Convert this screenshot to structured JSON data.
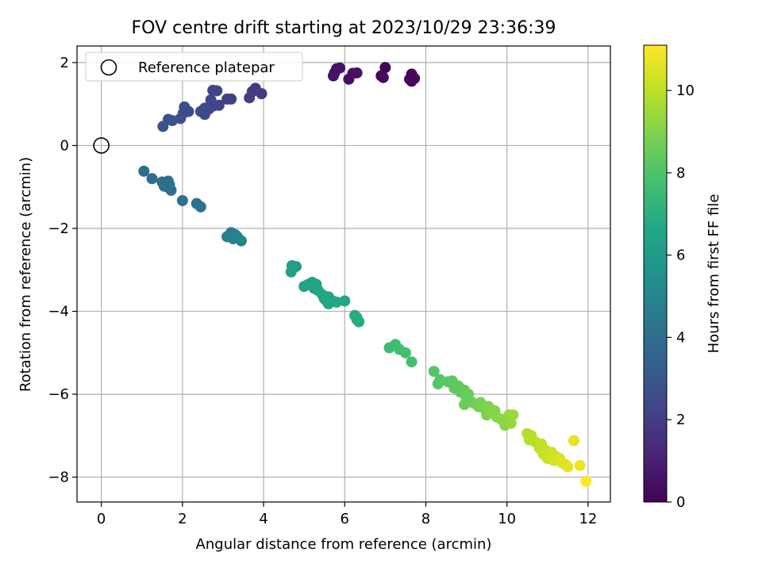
{
  "chart_data": {
    "type": "scatter",
    "title": "FOV centre drift starting at 2023/10/29 23:36:39",
    "xlabel": "Angular distance from reference (arcmin)",
    "ylabel": "Rotation from reference (arcmin)",
    "xlim": [
      -0.6,
      12.55
    ],
    "ylim": [
      -8.6,
      2.4
    ],
    "x_ticks": [
      0,
      2,
      4,
      6,
      8,
      10,
      12
    ],
    "x_tick_labels": [
      "0",
      "2",
      "4",
      "6",
      "8",
      "10",
      "12"
    ],
    "y_ticks": [
      2,
      0,
      -2,
      -4,
      -6,
      -8
    ],
    "y_tick_labels": [
      "2",
      "0",
      "−2",
      "−4",
      "−6",
      "−8"
    ],
    "grid": true,
    "legend": {
      "placement": "top-left",
      "entries": [
        {
          "label": "Reference platepar",
          "marker": "open-circle"
        }
      ]
    },
    "reference_point": {
      "x": 0,
      "y": 0
    },
    "colorbar": {
      "label": "Hours from first FF file",
      "colormap": "viridis",
      "range": [
        0,
        11.1
      ],
      "ticks": [
        0,
        2,
        4,
        6,
        8,
        10
      ],
      "tick_labels": [
        "0",
        "2",
        "4",
        "6",
        "8",
        "10"
      ]
    },
    "points": [
      {
        "x": 7.0,
        "y": 1.88,
        "h": 0.1
      },
      {
        "x": 7.65,
        "y": 1.72,
        "h": 0.1
      },
      {
        "x": 7.6,
        "y": 1.6,
        "h": 0.15
      },
      {
        "x": 7.72,
        "y": 1.62,
        "h": 0.2
      },
      {
        "x": 7.65,
        "y": 1.55,
        "h": 0.2
      },
      {
        "x": 6.9,
        "y": 1.68,
        "h": 0.3
      },
      {
        "x": 6.95,
        "y": 1.64,
        "h": 0.35
      },
      {
        "x": 6.1,
        "y": 1.6,
        "h": 0.4
      },
      {
        "x": 6.2,
        "y": 1.74,
        "h": 0.45
      },
      {
        "x": 6.3,
        "y": 1.75,
        "h": 0.5
      },
      {
        "x": 5.8,
        "y": 1.85,
        "h": 0.5
      },
      {
        "x": 5.88,
        "y": 1.87,
        "h": 0.55
      },
      {
        "x": 5.75,
        "y": 1.75,
        "h": 0.6
      },
      {
        "x": 5.72,
        "y": 1.68,
        "h": 0.65
      },
      {
        "x": 3.95,
        "y": 1.25,
        "h": 1.9
      },
      {
        "x": 3.8,
        "y": 1.38,
        "h": 1.95
      },
      {
        "x": 3.72,
        "y": 1.3,
        "h": 2.0
      },
      {
        "x": 3.65,
        "y": 1.15,
        "h": 2.05
      },
      {
        "x": 3.2,
        "y": 1.12,
        "h": 2.1
      },
      {
        "x": 3.1,
        "y": 1.12,
        "h": 2.15
      },
      {
        "x": 2.9,
        "y": 0.97,
        "h": 2.2
      },
      {
        "x": 2.85,
        "y": 1.32,
        "h": 2.25
      },
      {
        "x": 2.75,
        "y": 1.33,
        "h": 2.3
      },
      {
        "x": 2.75,
        "y": 0.95,
        "h": 2.3
      },
      {
        "x": 2.7,
        "y": 1.1,
        "h": 2.35
      },
      {
        "x": 2.65,
        "y": 0.88,
        "h": 2.4
      },
      {
        "x": 2.55,
        "y": 0.9,
        "h": 2.45
      },
      {
        "x": 2.5,
        "y": 0.85,
        "h": 2.5
      },
      {
        "x": 2.45,
        "y": 0.82,
        "h": 2.5
      },
      {
        "x": 2.55,
        "y": 0.75,
        "h": 2.55
      },
      {
        "x": 2.15,
        "y": 0.82,
        "h": 2.6
      },
      {
        "x": 2.05,
        "y": 0.93,
        "h": 2.6
      },
      {
        "x": 2.02,
        "y": 0.78,
        "h": 2.65
      },
      {
        "x": 1.95,
        "y": 0.65,
        "h": 2.7
      },
      {
        "x": 1.75,
        "y": 0.6,
        "h": 2.75
      },
      {
        "x": 1.65,
        "y": 0.63,
        "h": 2.8
      },
      {
        "x": 1.52,
        "y": 0.46,
        "h": 2.85
      },
      {
        "x": 1.05,
        "y": -0.62,
        "h": 3.9
      },
      {
        "x": 1.25,
        "y": -0.8,
        "h": 3.95
      },
      {
        "x": 1.5,
        "y": -0.88,
        "h": 4.0
      },
      {
        "x": 1.55,
        "y": -0.98,
        "h": 4.0
      },
      {
        "x": 1.65,
        "y": -0.86,
        "h": 4.05
      },
      {
        "x": 1.68,
        "y": -0.95,
        "h": 4.05
      },
      {
        "x": 1.72,
        "y": -1.08,
        "h": 4.1
      },
      {
        "x": 1.62,
        "y": -1.0,
        "h": 4.1
      },
      {
        "x": 2.0,
        "y": -1.33,
        "h": 4.15
      },
      {
        "x": 2.35,
        "y": -1.4,
        "h": 4.2
      },
      {
        "x": 2.45,
        "y": -1.48,
        "h": 4.25
      },
      {
        "x": 3.1,
        "y": -2.2,
        "h": 4.7
      },
      {
        "x": 3.2,
        "y": -2.1,
        "h": 4.75
      },
      {
        "x": 3.25,
        "y": -2.25,
        "h": 4.8
      },
      {
        "x": 3.3,
        "y": -2.15,
        "h": 4.85
      },
      {
        "x": 3.35,
        "y": -2.2,
        "h": 4.9
      },
      {
        "x": 3.45,
        "y": -2.3,
        "h": 4.95
      },
      {
        "x": 4.7,
        "y": -2.9,
        "h": 6.2
      },
      {
        "x": 4.8,
        "y": -2.92,
        "h": 6.2
      },
      {
        "x": 4.68,
        "y": -3.05,
        "h": 6.25
      },
      {
        "x": 5.0,
        "y": -3.4,
        "h": 6.3
      },
      {
        "x": 5.1,
        "y": -3.35,
        "h": 6.35
      },
      {
        "x": 5.2,
        "y": -3.3,
        "h": 6.35
      },
      {
        "x": 5.3,
        "y": -3.35,
        "h": 6.4
      },
      {
        "x": 5.25,
        "y": -3.45,
        "h": 6.4
      },
      {
        "x": 5.35,
        "y": -3.5,
        "h": 6.45
      },
      {
        "x": 5.45,
        "y": -3.6,
        "h": 6.5
      },
      {
        "x": 5.5,
        "y": -3.7,
        "h": 6.5
      },
      {
        "x": 5.6,
        "y": -3.65,
        "h": 6.55
      },
      {
        "x": 5.55,
        "y": -3.75,
        "h": 6.55
      },
      {
        "x": 5.6,
        "y": -3.82,
        "h": 6.6
      },
      {
        "x": 5.7,
        "y": -3.75,
        "h": 6.6
      },
      {
        "x": 5.8,
        "y": -3.78,
        "h": 6.65
      },
      {
        "x": 6.0,
        "y": -3.75,
        "h": 6.65
      },
      {
        "x": 6.25,
        "y": -4.1,
        "h": 6.75
      },
      {
        "x": 6.3,
        "y": -4.2,
        "h": 6.8
      },
      {
        "x": 6.35,
        "y": -4.25,
        "h": 6.8
      },
      {
        "x": 6.3,
        "y": -4.15,
        "h": 6.85
      },
      {
        "x": 7.1,
        "y": -4.88,
        "h": 7.6
      },
      {
        "x": 7.25,
        "y": -4.8,
        "h": 7.65
      },
      {
        "x": 7.35,
        "y": -4.92,
        "h": 7.7
      },
      {
        "x": 7.5,
        "y": -5.0,
        "h": 7.75
      },
      {
        "x": 7.65,
        "y": -5.22,
        "h": 7.8
      },
      {
        "x": 8.2,
        "y": -5.45,
        "h": 8.1
      },
      {
        "x": 8.35,
        "y": -5.65,
        "h": 8.15
      },
      {
        "x": 8.3,
        "y": -5.75,
        "h": 8.15
      },
      {
        "x": 8.55,
        "y": -5.7,
        "h": 8.2
      },
      {
        "x": 8.65,
        "y": -5.68,
        "h": 8.25
      },
      {
        "x": 8.7,
        "y": -5.85,
        "h": 8.3
      },
      {
        "x": 8.8,
        "y": -5.8,
        "h": 8.35
      },
      {
        "x": 8.85,
        "y": -5.95,
        "h": 8.4
      },
      {
        "x": 8.95,
        "y": -5.9,
        "h": 8.45
      },
      {
        "x": 9.05,
        "y": -6.0,
        "h": 8.5
      },
      {
        "x": 9.0,
        "y": -6.1,
        "h": 8.55
      },
      {
        "x": 8.95,
        "y": -6.25,
        "h": 8.6
      },
      {
        "x": 9.15,
        "y": -6.2,
        "h": 8.65
      },
      {
        "x": 9.25,
        "y": -6.25,
        "h": 8.7
      },
      {
        "x": 9.3,
        "y": -6.3,
        "h": 8.75
      },
      {
        "x": 9.35,
        "y": -6.2,
        "h": 8.8
      },
      {
        "x": 9.45,
        "y": -6.35,
        "h": 8.85
      },
      {
        "x": 9.5,
        "y": -6.5,
        "h": 8.9
      },
      {
        "x": 9.55,
        "y": -6.3,
        "h": 8.95
      },
      {
        "x": 9.6,
        "y": -6.45,
        "h": 9.0
      },
      {
        "x": 9.7,
        "y": -6.4,
        "h": 9.05
      },
      {
        "x": 9.75,
        "y": -6.55,
        "h": 9.1
      },
      {
        "x": 9.85,
        "y": -6.6,
        "h": 9.15
      },
      {
        "x": 9.95,
        "y": -6.75,
        "h": 9.2
      },
      {
        "x": 10.0,
        "y": -6.6,
        "h": 9.25
      },
      {
        "x": 10.05,
        "y": -6.5,
        "h": 9.3
      },
      {
        "x": 10.1,
        "y": -6.7,
        "h": 9.35
      },
      {
        "x": 10.15,
        "y": -6.5,
        "h": 9.4
      },
      {
        "x": 10.5,
        "y": -6.95,
        "h": 9.8
      },
      {
        "x": 10.55,
        "y": -7.1,
        "h": 9.85
      },
      {
        "x": 10.6,
        "y": -7.0,
        "h": 9.9
      },
      {
        "x": 10.7,
        "y": -7.15,
        "h": 9.95
      },
      {
        "x": 10.8,
        "y": -7.3,
        "h": 10.0
      },
      {
        "x": 10.85,
        "y": -7.2,
        "h": 10.05
      },
      {
        "x": 10.9,
        "y": -7.45,
        "h": 10.1
      },
      {
        "x": 10.95,
        "y": -7.35,
        "h": 10.15
      },
      {
        "x": 11.0,
        "y": -7.55,
        "h": 10.2
      },
      {
        "x": 11.05,
        "y": -7.5,
        "h": 10.25
      },
      {
        "x": 11.1,
        "y": -7.4,
        "h": 10.3
      },
      {
        "x": 11.15,
        "y": -7.6,
        "h": 10.35
      },
      {
        "x": 11.2,
        "y": -7.5,
        "h": 10.4
      },
      {
        "x": 11.3,
        "y": -7.55,
        "h": 10.5
      },
      {
        "x": 11.35,
        "y": -7.65,
        "h": 10.55
      },
      {
        "x": 11.45,
        "y": -7.7,
        "h": 10.6
      },
      {
        "x": 11.5,
        "y": -7.75,
        "h": 10.65
      },
      {
        "x": 11.65,
        "y": -7.12,
        "h": 10.7
      },
      {
        "x": 11.8,
        "y": -7.72,
        "h": 10.8
      },
      {
        "x": 11.95,
        "y": -8.1,
        "h": 11.1
      }
    ]
  }
}
